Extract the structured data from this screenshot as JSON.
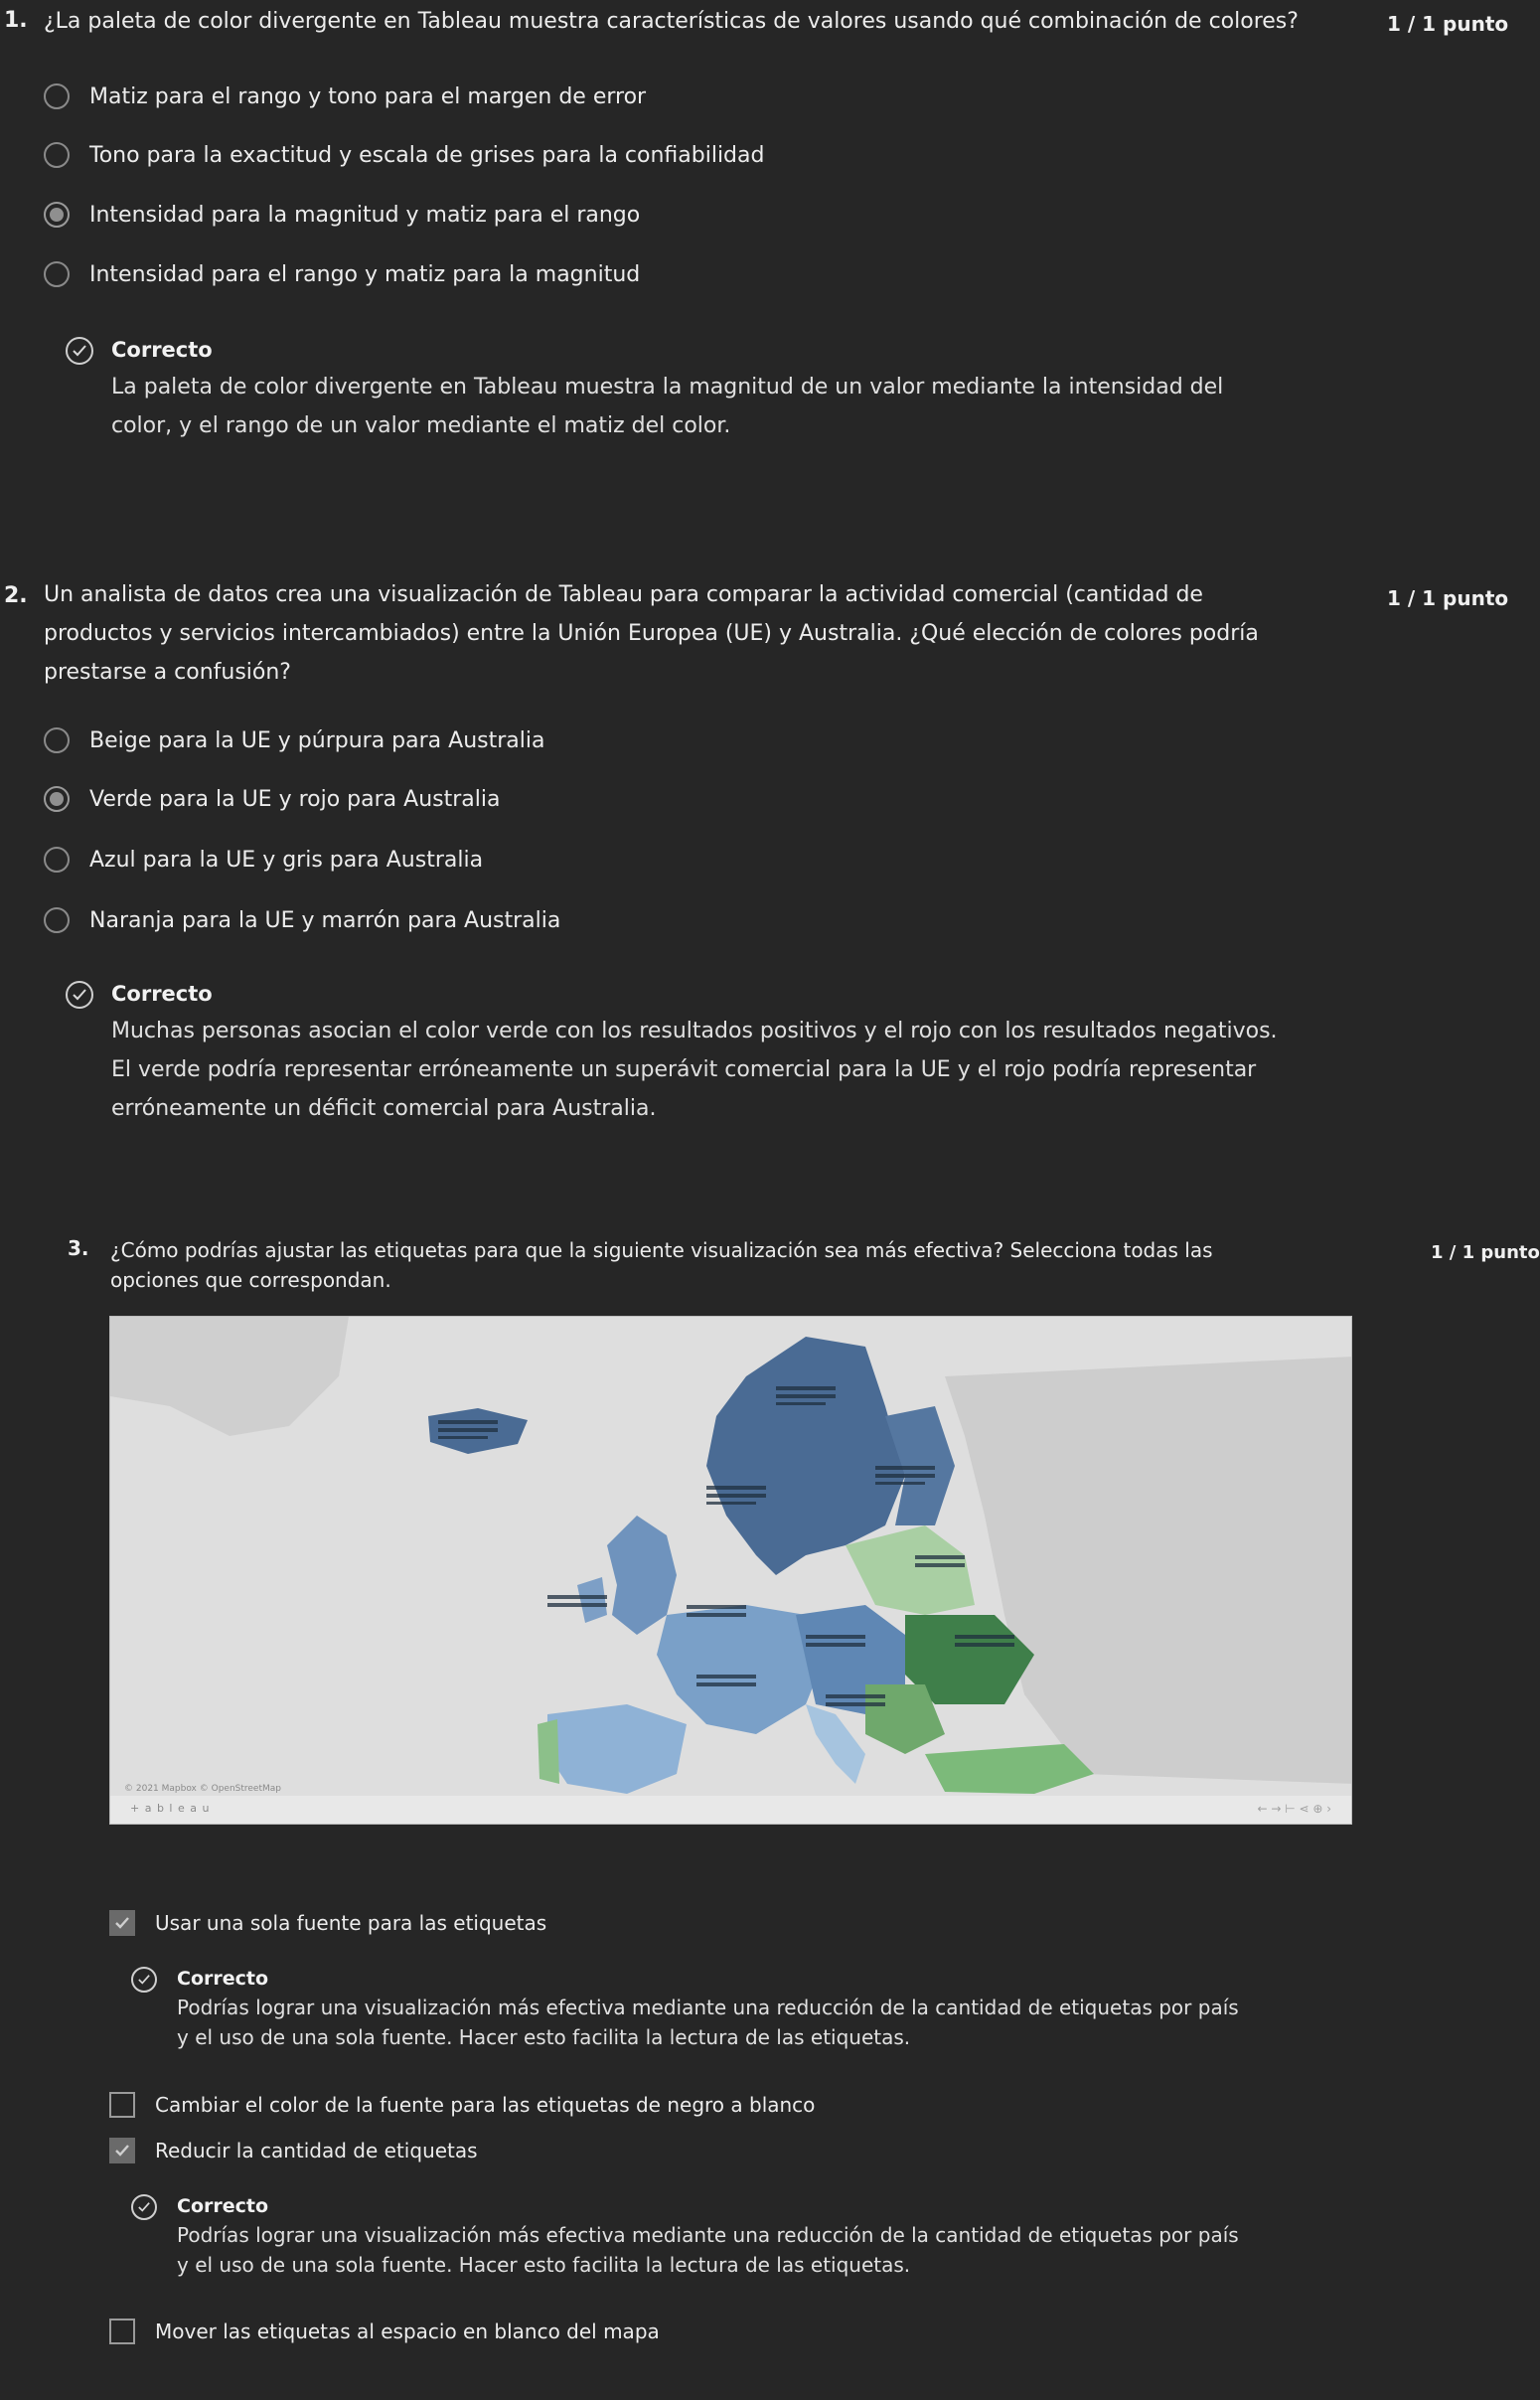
{
  "q1": {
    "number": "1.",
    "text": "¿La paleta de color divergente en Tableau muestra características de valores usando qué combinación de colores?",
    "points": "1 / 1 punto",
    "options": [
      "Matiz para el rango y tono para el margen de error",
      "Tono para la exactitud y escala de grises para la confiabilidad",
      "Intensidad para la magnitud y matiz para el rango",
      "Intensidad para el rango y matiz para la magnitud"
    ],
    "selected_index": 2,
    "feedback_title": "Correcto",
    "feedback_lines": [
      "La paleta de color divergente en Tableau muestra la magnitud de un valor mediante la intensidad del",
      "color, y el rango de un valor mediante el matiz del color."
    ]
  },
  "q2": {
    "number": "2.",
    "text_lines": [
      "Un analista de datos crea una visualización de Tableau para comparar la actividad comercial (cantidad de",
      "productos y servicios intercambiados) entre la Unión Europea (UE) y Australia. ¿Qué elección de colores podría",
      "prestarse a confusión?"
    ],
    "points": "1 / 1 punto",
    "options": [
      "Beige para la UE y púrpura para Australia",
      "Verde para la UE y rojo para Australia",
      "Azul para la UE y gris para Australia",
      "Naranja para la UE y marrón para Australia"
    ],
    "selected_index": 1,
    "feedback_title": "Correcto",
    "feedback_lines": [
      "Muchas personas asocian el color verde con los resultados positivos y el rojo con los resultados negativos.",
      "El verde podría representar erróneamente un superávit comercial para la UE y el rojo podría representar",
      "erróneamente un déficit comercial para Australia."
    ]
  },
  "q3": {
    "number": "3.",
    "text_lines": [
      "¿Cómo podrías ajustar las etiquetas para que la siguiente visualización sea más efectiva? Selecciona todas las",
      "opciones que correspondan."
    ],
    "points": "1 / 1 punto",
    "map": {
      "attribution": "© 2021 Mapbox © OpenStreetMap",
      "logo": "+ a b l e a u",
      "toolbar": "←   →   ⊢   ⋖   ⊕   ›"
    },
    "options": [
      {
        "label": "Usar una sola fuente para las etiquetas",
        "checked": true,
        "feedback_title": "Correcto",
        "feedback_lines": [
          "Podrías lograr una visualización más efectiva mediante una reducción de la cantidad de etiquetas por país",
          "y el uso de una sola fuente. Hacer esto facilita la lectura de las etiquetas."
        ]
      },
      {
        "label": "Cambiar el color de la fuente para las etiquetas de negro a blanco",
        "checked": false
      },
      {
        "label": "Reducir la cantidad de etiquetas",
        "checked": true,
        "feedback_title": "Correcto",
        "feedback_lines": [
          "Podrías lograr una visualización más efectiva mediante una reducción de la cantidad de etiquetas por país",
          "y el uso de una sola fuente. Hacer esto facilita la lectura de las etiquetas."
        ]
      },
      {
        "label": "Mover las etiquetas al espacio en blanco del mapa",
        "checked": false
      }
    ]
  }
}
